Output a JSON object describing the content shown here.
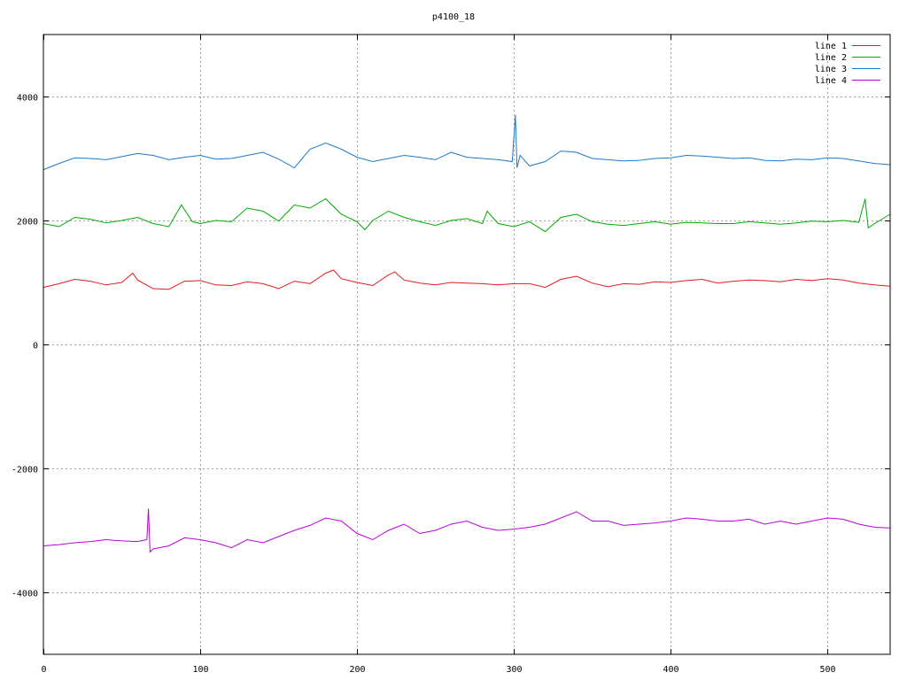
{
  "chart_data": {
    "type": "line",
    "title": "p4100_18",
    "xlabel": "",
    "ylabel": "",
    "xlim": [
      0,
      540
    ],
    "ylim": [
      -5000,
      5000
    ],
    "xticks": [
      0,
      100,
      200,
      300,
      400,
      500
    ],
    "yticks": [
      -4000,
      -2000,
      0,
      2000,
      4000
    ],
    "x_tick_labels": [
      "0",
      "100",
      "200",
      "300",
      "400",
      "500"
    ],
    "y_tick_labels": [
      "-4000",
      "-2000",
      "0",
      "2000",
      "4000"
    ],
    "grid": true,
    "legend_position": "top-right",
    "series": [
      {
        "name": "line 1",
        "color": "#e31a1c",
        "x": [
          0,
          10,
          20,
          30,
          40,
          50,
          57,
          60,
          70,
          80,
          90,
          100,
          110,
          120,
          130,
          140,
          150,
          160,
          170,
          180,
          185,
          190,
          200,
          210,
          220,
          224,
          230,
          240,
          250,
          260,
          270,
          280,
          290,
          300,
          310,
          320,
          330,
          340,
          350,
          360,
          370,
          380,
          390,
          400,
          410,
          420,
          430,
          440,
          450,
          460,
          470,
          480,
          490,
          500,
          510,
          520,
          530,
          540
        ],
        "y": [
          920,
          980,
          1050,
          1020,
          960,
          1000,
          1150,
          1040,
          900,
          890,
          1020,
          1030,
          960,
          950,
          1010,
          980,
          900,
          1020,
          980,
          1150,
          1200,
          1060,
          1000,
          950,
          1120,
          1170,
          1040,
          990,
          960,
          1000,
          990,
          980,
          960,
          980,
          980,
          920,
          1050,
          1100,
          990,
          930,
          980,
          970,
          1010,
          1000,
          1030,
          1050,
          990,
          1020,
          1040,
          1030,
          1010,
          1050,
          1030,
          1060,
          1040,
          990,
          960,
          940
        ]
      },
      {
        "name": "line 2",
        "color": "#00aa00",
        "x": [
          0,
          10,
          20,
          30,
          40,
          50,
          60,
          70,
          80,
          88,
          95,
          100,
          110,
          120,
          130,
          140,
          150,
          160,
          170,
          180,
          190,
          200,
          205,
          210,
          220,
          230,
          240,
          250,
          260,
          270,
          280,
          283,
          290,
          300,
          310,
          320,
          330,
          340,
          350,
          360,
          370,
          380,
          390,
          400,
          410,
          420,
          430,
          440,
          450,
          460,
          470,
          480,
          490,
          500,
          510,
          520,
          524,
          526,
          530,
          540
        ],
        "y": [
          1950,
          1900,
          2050,
          2020,
          1960,
          2000,
          2050,
          1950,
          1900,
          2250,
          1980,
          1950,
          2000,
          1980,
          2200,
          2150,
          1990,
          2250,
          2200,
          2350,
          2100,
          1980,
          1850,
          2000,
          2150,
          2050,
          1980,
          1920,
          2000,
          2030,
          1950,
          2150,
          1950,
          1900,
          1980,
          1820,
          2050,
          2100,
          1980,
          1940,
          1920,
          1950,
          1980,
          1940,
          1970,
          1960,
          1950,
          1950,
          1980,
          1960,
          1940,
          1960,
          1990,
          1980,
          2000,
          1970,
          2350,
          1880,
          1950,
          2100
        ]
      },
      {
        "name": "line 3",
        "color": "#1f78c8",
        "x": [
          0,
          10,
          20,
          30,
          40,
          50,
          60,
          70,
          80,
          90,
          100,
          110,
          120,
          130,
          140,
          150,
          160,
          170,
          180,
          190,
          200,
          210,
          220,
          230,
          240,
          250,
          260,
          270,
          280,
          290,
          299,
          301,
          302,
          304,
          310,
          320,
          330,
          340,
          350,
          360,
          370,
          380,
          390,
          400,
          410,
          420,
          430,
          440,
          450,
          460,
          470,
          480,
          490,
          500,
          510,
          520,
          530,
          540
        ],
        "y": [
          2820,
          2920,
          3010,
          3000,
          2980,
          3030,
          3080,
          3050,
          2980,
          3020,
          3050,
          2990,
          3000,
          3050,
          3100,
          2990,
          2850,
          3150,
          3250,
          3150,
          3020,
          2950,
          3000,
          3050,
          3020,
          2980,
          3100,
          3020,
          3000,
          2980,
          2950,
          3700,
          2850,
          3050,
          2880,
          2950,
          3120,
          3100,
          3000,
          2980,
          2960,
          2970,
          3000,
          3010,
          3050,
          3040,
          3020,
          3000,
          3010,
          2970,
          2960,
          2990,
          2980,
          3010,
          3000,
          2960,
          2920,
          2900
        ]
      },
      {
        "name": "line 4",
        "color": "#bb00dd",
        "x": [
          0,
          10,
          20,
          30,
          40,
          50,
          60,
          66,
          67,
          68,
          70,
          80,
          90,
          100,
          110,
          120,
          130,
          140,
          150,
          160,
          170,
          180,
          190,
          200,
          210,
          220,
          230,
          240,
          250,
          260,
          270,
          280,
          290,
          300,
          310,
          320,
          330,
          340,
          350,
          360,
          370,
          380,
          390,
          400,
          410,
          420,
          430,
          440,
          450,
          460,
          470,
          480,
          490,
          500,
          510,
          520,
          530,
          540
        ],
        "y": [
          -3250,
          -3230,
          -3200,
          -3180,
          -3150,
          -3170,
          -3180,
          -3150,
          -2650,
          -3350,
          -3300,
          -3250,
          -3120,
          -3150,
          -3200,
          -3280,
          -3150,
          -3200,
          -3100,
          -3000,
          -2920,
          -2800,
          -2850,
          -3050,
          -3150,
          -3000,
          -2900,
          -3050,
          -3000,
          -2900,
          -2850,
          -2950,
          -3000,
          -2980,
          -2950,
          -2900,
          -2800,
          -2700,
          -2850,
          -2850,
          -2920,
          -2900,
          -2880,
          -2850,
          -2800,
          -2820,
          -2850,
          -2850,
          -2820,
          -2900,
          -2850,
          -2900,
          -2850,
          -2800,
          -2820,
          -2900,
          -2950,
          -2960
        ]
      }
    ]
  }
}
